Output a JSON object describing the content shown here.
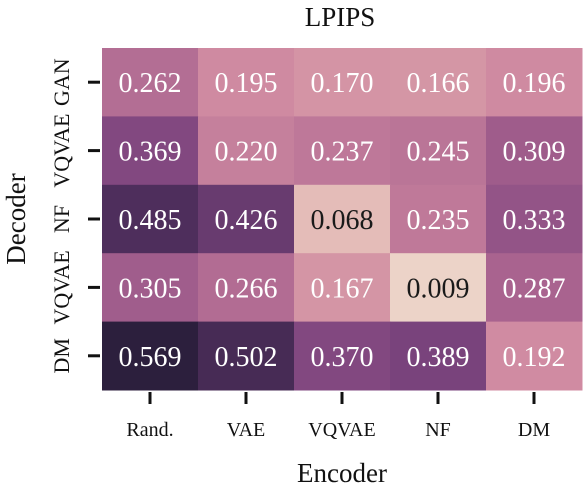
{
  "chart_data": {
    "type": "heatmap",
    "title": "LPIPS",
    "xlabel": "Encoder",
    "ylabel": "Decoder",
    "x_categories": [
      "Rand.",
      "VAE",
      "VQVAE",
      "NF",
      "DM"
    ],
    "y_categories": [
      "GAN",
      "VQVAE",
      "NF",
      "VQVAE",
      "DM"
    ],
    "values": [
      [
        0.262,
        0.195,
        0.17,
        0.166,
        0.196
      ],
      [
        0.369,
        0.22,
        0.237,
        0.245,
        0.309
      ],
      [
        0.485,
        0.426,
        0.068,
        0.235,
        0.333
      ],
      [
        0.305,
        0.266,
        0.167,
        0.009,
        0.287
      ],
      [
        0.569,
        0.502,
        0.37,
        0.389,
        0.192
      ]
    ],
    "value_labels": [
      [
        "0.262",
        "0.195",
        "0.170",
        "0.166",
        "0.196"
      ],
      [
        "0.369",
        "0.220",
        "0.237",
        "0.245",
        "0.309"
      ],
      [
        "0.485",
        "0.426",
        "0.068",
        "0.235",
        "0.333"
      ],
      [
        "0.305",
        "0.266",
        "0.167",
        "0.009",
        "0.287"
      ],
      [
        "0.569",
        "0.502",
        "0.370",
        "0.389",
        "0.192"
      ]
    ],
    "colormap": [
      "#ecd3c8",
      "#e0afaf",
      "#cf8aa1",
      "#a8628f",
      "#7c447e",
      "#52305f",
      "#2c1f3d"
    ],
    "grid": false,
    "legend": "none"
  }
}
